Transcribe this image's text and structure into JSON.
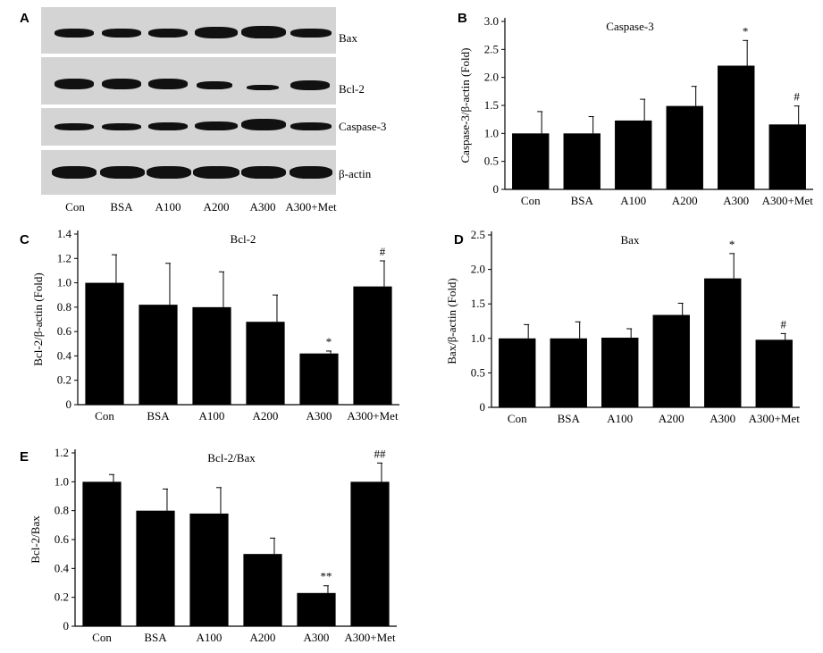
{
  "panels": {
    "a": "A",
    "b": "B",
    "c": "C",
    "d": "D",
    "e": "E"
  },
  "blot": {
    "rows": [
      "Bax",
      "Bcl-2",
      "Caspase-3",
      "β-actin"
    ],
    "lanes": [
      "Con",
      "BSA",
      "A100",
      "A200",
      "A300",
      "A300+Met"
    ]
  },
  "chart_data": [
    {
      "id": "B",
      "type": "bar",
      "title": "Caspase-3",
      "ylabel": "Caspase-3/β-actin (Fold)",
      "xlabel": "",
      "categories": [
        "Con",
        "BSA",
        "A100",
        "A200",
        "A300",
        "A300+Met"
      ],
      "values": [
        1.0,
        1.0,
        1.23,
        1.49,
        2.21,
        1.16
      ],
      "errors": [
        0.39,
        0.3,
        0.38,
        0.35,
        0.45,
        0.33
      ],
      "annotations": [
        "",
        "",
        "",
        "",
        "*",
        "#"
      ],
      "ylim": [
        0,
        3.0
      ],
      "yticks": [
        "0",
        "0.5",
        "1.0",
        "1.5",
        "2.0",
        "2.5",
        "3.0"
      ],
      "ytick_values": [
        0,
        0.5,
        1.0,
        1.5,
        2.0,
        2.5,
        3.0
      ],
      "grid": false
    },
    {
      "id": "C",
      "type": "bar",
      "title": "Bcl-2",
      "ylabel": "Bcl-2/β-actin (Fold)",
      "xlabel": "",
      "categories": [
        "Con",
        "BSA",
        "A100",
        "A200",
        "A300",
        "A300+Met"
      ],
      "values": [
        1.0,
        0.82,
        0.8,
        0.68,
        0.42,
        0.97
      ],
      "errors": [
        0.23,
        0.34,
        0.29,
        0.22,
        0.02,
        0.21
      ],
      "annotations": [
        "",
        "",
        "",
        "",
        "*",
        "#"
      ],
      "ylim": [
        0,
        1.4
      ],
      "yticks": [
        "0",
        "0.2",
        "0.4",
        "0.6",
        "0.8",
        "1.0",
        "1.2",
        "1.4"
      ],
      "ytick_values": [
        0,
        0.2,
        0.4,
        0.6,
        0.8,
        1.0,
        1.2,
        1.4
      ],
      "grid": false
    },
    {
      "id": "D",
      "type": "bar",
      "title": "Bax",
      "ylabel": "Bax/β-actin (Fold)",
      "xlabel": "",
      "categories": [
        "Con",
        "BSA",
        "A100",
        "A200",
        "A300",
        "A300+Met"
      ],
      "values": [
        1.0,
        1.0,
        1.01,
        1.34,
        1.87,
        0.98
      ],
      "errors": [
        0.2,
        0.24,
        0.13,
        0.17,
        0.36,
        0.09
      ],
      "annotations": [
        "",
        "",
        "",
        "",
        "*",
        "#"
      ],
      "ylim": [
        0,
        2.5
      ],
      "yticks": [
        "0",
        "0.5",
        "1.0",
        "1.5",
        "2.0",
        "2.5"
      ],
      "ytick_values": [
        0,
        0.5,
        1.0,
        1.5,
        2.0,
        2.5
      ],
      "grid": false
    },
    {
      "id": "E",
      "type": "bar",
      "title": "Bcl-2/Bax",
      "ylabel": "Bcl-2/Bax",
      "xlabel": "",
      "categories": [
        "Con",
        "BSA",
        "A100",
        "A200",
        "A300",
        "A300+Met"
      ],
      "values": [
        1.0,
        0.8,
        0.78,
        0.5,
        0.23,
        1.0
      ],
      "errors": [
        0.05,
        0.15,
        0.18,
        0.11,
        0.05,
        0.13
      ],
      "annotations": [
        "",
        "",
        "",
        "",
        "**",
        "##"
      ],
      "ylim": [
        0,
        1.2
      ],
      "yticks": [
        "0",
        "0.2",
        "0.4",
        "0.6",
        "0.8",
        "1.0",
        "1.2"
      ],
      "ytick_values": [
        0,
        0.2,
        0.4,
        0.6,
        0.8,
        1.0,
        1.2
      ],
      "grid": false
    }
  ]
}
